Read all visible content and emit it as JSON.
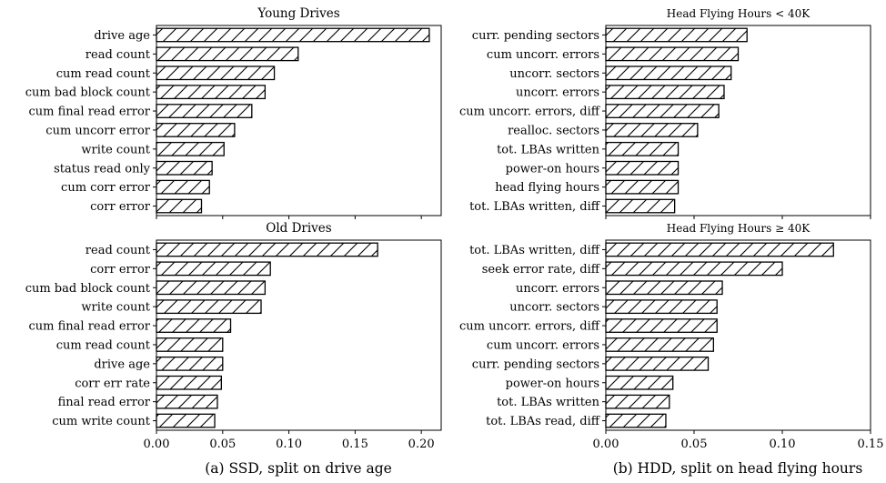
{
  "chart_data": [
    {
      "type": "bar",
      "orientation": "horizontal",
      "title": "Young Drives",
      "xlim": [
        0,
        0.215
      ],
      "xticks": [
        0.0,
        0.05,
        0.1,
        0.15,
        0.2
      ],
      "show_tick_labels": false,
      "categories": [
        "drive age",
        "read count",
        "cum read count",
        "cum bad block count",
        "cum final read error",
        "cum uncorr error",
        "write count",
        "status read only",
        "cum corr error",
        "corr error"
      ],
      "values": [
        0.206,
        0.107,
        0.089,
        0.082,
        0.072,
        0.059,
        0.051,
        0.042,
        0.04,
        0.034
      ]
    },
    {
      "type": "bar",
      "orientation": "horizontal",
      "title": "Head Flying Hours < 40K",
      "xlim": [
        0,
        0.15
      ],
      "xticks": [
        0.0,
        0.05,
        0.1,
        0.15
      ],
      "show_tick_labels": false,
      "categories": [
        "curr. pending sectors",
        "cum uncorr. errors",
        "uncorr. sectors",
        "uncorr. errors",
        "cum uncorr. errors, diff",
        "realloc. sectors",
        "tot. LBAs written",
        "power-on hours",
        "head flying hours",
        "tot. LBAs written, diff"
      ],
      "values": [
        0.08,
        0.075,
        0.071,
        0.067,
        0.064,
        0.052,
        0.041,
        0.041,
        0.041,
        0.039
      ]
    },
    {
      "type": "bar",
      "orientation": "horizontal",
      "title": "Old Drives",
      "xlim": [
        0,
        0.215
      ],
      "xticks": [
        0.0,
        0.05,
        0.1,
        0.15,
        0.2
      ],
      "xticklabels": [
        "0.00",
        "0.05",
        "0.10",
        "0.15",
        "0.20"
      ],
      "show_tick_labels": true,
      "caption": "(a) SSD, split on drive age",
      "categories": [
        "read count",
        "corr error",
        "cum bad block count",
        "write count",
        "cum final read error",
        "cum read count",
        "drive age",
        "corr err rate",
        "final read error",
        "cum write count"
      ],
      "values": [
        0.167,
        0.086,
        0.082,
        0.079,
        0.056,
        0.05,
        0.05,
        0.049,
        0.046,
        0.044
      ]
    },
    {
      "type": "bar",
      "orientation": "horizontal",
      "title": "Head Flying Hours ≥ 40K",
      "xlim": [
        0,
        0.15
      ],
      "xticks": [
        0.0,
        0.05,
        0.1,
        0.15
      ],
      "xticklabels": [
        "0.00",
        "0.05",
        "0.10",
        "0.15"
      ],
      "show_tick_labels": true,
      "caption": "(b) HDD, split on head flying hours",
      "categories": [
        "tot. LBAs written, diff",
        "seek error rate, diff",
        "uncorr. errors",
        "uncorr. sectors",
        "cum uncorr. errors, diff",
        "cum uncorr. errors",
        "curr. pending sectors",
        "power-on hours",
        "tot. LBAs written",
        "tot. LBAs read, diff"
      ],
      "values": [
        0.129,
        0.1,
        0.066,
        0.063,
        0.063,
        0.061,
        0.058,
        0.038,
        0.036,
        0.034
      ]
    }
  ]
}
